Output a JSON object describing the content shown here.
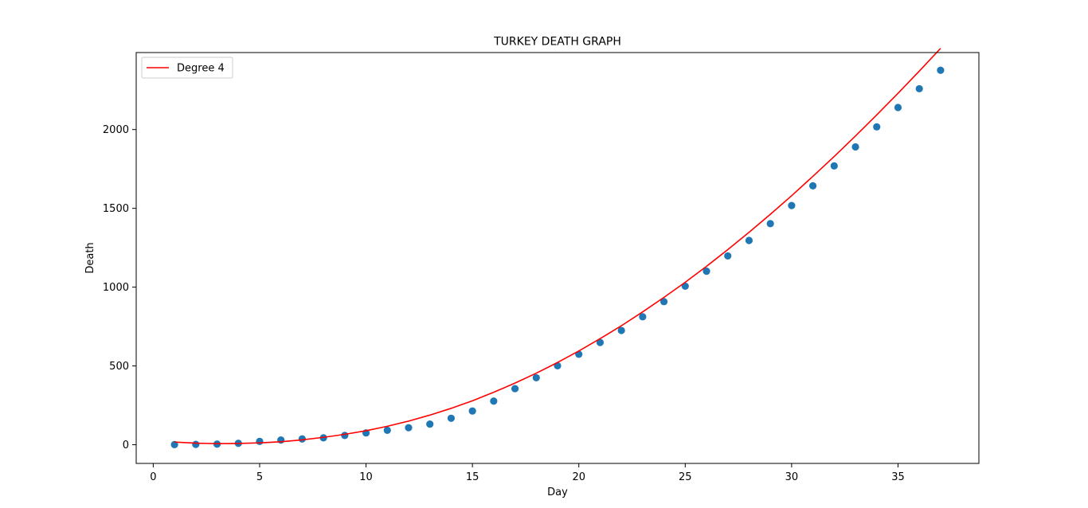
{
  "chart_data": {
    "type": "line",
    "title": "TURKEY DEATH GRAPH",
    "xlabel": "Day",
    "ylabel": "Death",
    "xlim": [
      -0.8,
      38.8
    ],
    "ylim": [
      -118.5,
      2488.5
    ],
    "xticks": [
      0,
      5,
      10,
      15,
      20,
      25,
      30,
      35
    ],
    "yticks": [
      0,
      500,
      1000,
      1500,
      2000
    ],
    "grid": false,
    "legend_position": "upper-left",
    "series": [
      {
        "name": "Degree 4",
        "kind": "line",
        "color": "#ff0000",
        "x": [
          1,
          2,
          3,
          4,
          5,
          6,
          7,
          8,
          9,
          10,
          11,
          12,
          13,
          14,
          15,
          16,
          17,
          18,
          19,
          20,
          21,
          22,
          23,
          24,
          25,
          26,
          27,
          28,
          29,
          30,
          31,
          32,
          33,
          34,
          35,
          36,
          37
        ],
        "y": [
          17,
          10,
          7,
          8,
          12,
          19,
          31,
          47,
          66,
          89,
          117,
          150,
          188,
          231,
          279,
          333,
          391,
          454,
          522,
          595,
          673,
          755,
          843,
          935,
          1031,
          1132,
          1238,
          1348,
          1462,
          1580,
          1703,
          1829,
          1959,
          2093,
          2230,
          2371,
          2515
        ]
      },
      {
        "kind": "scatter",
        "color": "#1f77b4",
        "x": [
          1,
          2,
          3,
          4,
          5,
          6,
          7,
          8,
          9,
          10,
          11,
          12,
          13,
          14,
          15,
          16,
          17,
          18,
          19,
          20,
          21,
          22,
          23,
          24,
          25,
          26,
          27,
          28,
          29,
          30,
          31,
          32,
          33,
          34,
          35,
          36,
          37
        ],
        "y": [
          1,
          2,
          4,
          9,
          21,
          30,
          37,
          44,
          59,
          75,
          92,
          108,
          131,
          168,
          214,
          277,
          356,
          425,
          501,
          574,
          649,
          725,
          812,
          908,
          1006,
          1101,
          1198,
          1296,
          1403,
          1518,
          1643,
          1769,
          1890,
          2017,
          2140,
          2259,
          2376
        ]
      }
    ]
  }
}
